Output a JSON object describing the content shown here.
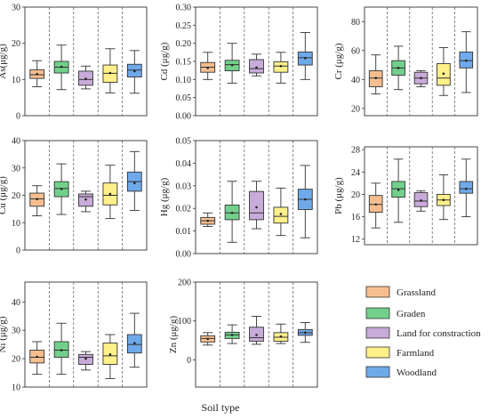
{
  "figure": {
    "xlabel": "Soil type",
    "category_colors": [
      "#f6be8f",
      "#72d08c",
      "#c8abd8",
      "#fff08a",
      "#6ea9ea"
    ]
  },
  "legend": {
    "items": [
      {
        "label": "Grassland",
        "color": "#f6be8f"
      },
      {
        "label": "Graden",
        "color": "#72d08c"
      },
      {
        "label": "Land for constraction",
        "color": "#c8abd8"
      },
      {
        "label": "Farmland",
        "color": "#fff08a"
      },
      {
        "label": "Woodland",
        "color": "#6ea9ea"
      }
    ]
  },
  "chart_data": [
    {
      "type": "box",
      "id": "As",
      "ylabel": "As(μg/g)",
      "ylim": [
        0,
        30
      ],
      "yticks": [
        "0",
        "10",
        "20",
        "30"
      ],
      "tickvals": [
        0,
        10,
        20,
        30
      ],
      "categories": [
        "Grassland",
        "Graden",
        "Land for constraction",
        "Farmland",
        "Woodland"
      ],
      "boxes": [
        {
          "min": 8,
          "q1": 10.3,
          "median": 11.3,
          "q3": 12.7,
          "max": 15.2,
          "mean": 11.5
        },
        {
          "min": 7.2,
          "q1": 11.8,
          "median": 13.4,
          "q3": 15.0,
          "max": 19.5,
          "mean": 13.5
        },
        {
          "min": 7.4,
          "q1": 8.4,
          "median": 10.0,
          "q3": 12.3,
          "max": 13.7,
          "mean": 10.2
        },
        {
          "min": 6.3,
          "q1": 9.2,
          "median": 11.7,
          "q3": 14.0,
          "max": 18.5,
          "mean": 11.8
        },
        {
          "min": 6.2,
          "q1": 10.7,
          "median": 12.6,
          "q3": 14.2,
          "max": 18.0,
          "mean": 12.3
        }
      ]
    },
    {
      "type": "box",
      "id": "Cd",
      "ylabel": "Cd (μg/g)",
      "ylim": [
        0,
        0.3
      ],
      "yticks": [
        "0.00",
        "0.05",
        "0.10",
        "0.15",
        "0.20",
        "0.25",
        "0.30"
      ],
      "tickvals": [
        0,
        0.05,
        0.1,
        0.15,
        0.2,
        0.25,
        0.3
      ],
      "categories": [
        "Grassland",
        "Graden",
        "Land for constraction",
        "Farmland",
        "Woodland"
      ],
      "boxes": [
        {
          "min": 0.1,
          "q1": 0.12,
          "median": 0.134,
          "q3": 0.147,
          "max": 0.175,
          "mean": 0.132
        },
        {
          "min": 0.09,
          "q1": 0.124,
          "median": 0.141,
          "q3": 0.153,
          "max": 0.2,
          "mean": 0.14
        },
        {
          "min": 0.11,
          "q1": 0.118,
          "median": 0.13,
          "q3": 0.155,
          "max": 0.17,
          "mean": 0.133
        },
        {
          "min": 0.09,
          "q1": 0.12,
          "median": 0.137,
          "q3": 0.149,
          "max": 0.175,
          "mean": 0.137
        },
        {
          "min": 0.1,
          "q1": 0.14,
          "median": 0.16,
          "q3": 0.176,
          "max": 0.23,
          "mean": 0.159
        }
      ]
    },
    {
      "type": "box",
      "id": "Cr",
      "ylabel": "Cr (μg/g)",
      "ylim": [
        15,
        90
      ],
      "yticks": [
        "20",
        "40",
        "60",
        "80"
      ],
      "tickvals": [
        20,
        40,
        60,
        80
      ],
      "categories": [
        "Grassland",
        "Graden",
        "Land for constraction",
        "Farmland",
        "Woodland"
      ],
      "boxes": [
        {
          "min": 30,
          "q1": 35,
          "median": 41,
          "q3": 46,
          "max": 57,
          "mean": 41
        },
        {
          "min": 33,
          "q1": 43,
          "median": 48,
          "q3": 53,
          "max": 63,
          "mean": 48
        },
        {
          "min": 35,
          "q1": 37,
          "median": 41,
          "q3": 45,
          "max": 46,
          "mean": 41
        },
        {
          "min": 29,
          "q1": 36,
          "median": 41,
          "q3": 51,
          "max": 62,
          "mean": 44
        },
        {
          "min": 31,
          "q1": 48,
          "median": 53,
          "q3": 59,
          "max": 73,
          "mean": 53
        }
      ]
    },
    {
      "type": "box",
      "id": "Cu",
      "ylabel": "Cu (μg/g)",
      "ylim": [
        0,
        40
      ],
      "yticks": [
        "0",
        "10",
        "20",
        "30",
        "40"
      ],
      "tickvals": [
        0,
        10,
        20,
        30,
        40
      ],
      "categories": [
        "Grassland",
        "Graden",
        "Land for constraction",
        "Farmland",
        "Woodland"
      ],
      "boxes": [
        {
          "min": 12.5,
          "q1": 16.0,
          "median": 18.7,
          "q3": 20.8,
          "max": 23.5,
          "mean": 18.6
        },
        {
          "min": 13.0,
          "q1": 19.5,
          "median": 22.5,
          "q3": 25.0,
          "max": 31.5,
          "mean": 22.3
        },
        {
          "min": 14.0,
          "q1": 16.0,
          "median": 19.5,
          "q3": 20.5,
          "max": 21.5,
          "mean": 18.5
        },
        {
          "min": 11.5,
          "q1": 16.5,
          "median": 20.0,
          "q3": 24.5,
          "max": 31.0,
          "mean": 20.5
        },
        {
          "min": 14.5,
          "q1": 21.5,
          "median": 25.0,
          "q3": 28.5,
          "max": 36.0,
          "mean": 24.5
        }
      ]
    },
    {
      "type": "box",
      "id": "Hg",
      "ylabel": "Hg (μg/g)",
      "ylim": [
        0,
        0.05
      ],
      "yticks": [
        "0.00",
        "0.01",
        "0.02",
        "0.03",
        "0.04",
        "0.05"
      ],
      "tickvals": [
        0,
        0.01,
        0.02,
        0.03,
        0.04,
        0.05
      ],
      "categories": [
        "Grassland",
        "Graden",
        "Land for constraction",
        "Farmland",
        "Woodland"
      ],
      "boxes": [
        {
          "min": 0.012,
          "q1": 0.013,
          "median": 0.0145,
          "q3": 0.016,
          "max": 0.018,
          "mean": 0.0145
        },
        {
          "min": 0.005,
          "q1": 0.015,
          "median": 0.018,
          "q3": 0.0215,
          "max": 0.032,
          "mean": 0.018
        },
        {
          "min": 0.011,
          "q1": 0.015,
          "median": 0.018,
          "q3": 0.0275,
          "max": 0.032,
          "mean": 0.0205
        },
        {
          "min": 0.008,
          "q1": 0.0135,
          "median": 0.0165,
          "q3": 0.0205,
          "max": 0.029,
          "mean": 0.0175
        },
        {
          "min": 0.007,
          "q1": 0.0195,
          "median": 0.024,
          "q3": 0.0285,
          "max": 0.039,
          "mean": 0.024
        }
      ]
    },
    {
      "type": "box",
      "id": "Pb",
      "ylabel": "Pb (μg/g)",
      "ylim": [
        11,
        28.5
      ],
      "yticks": [
        "12",
        "16",
        "20",
        "24",
        "28"
      ],
      "tickvals": [
        12,
        16,
        20,
        24,
        28
      ],
      "categories": [
        "Grassland",
        "Graden",
        "Land for constraction",
        "Farmland",
        "Woodland"
      ],
      "boxes": [
        {
          "min": 14.0,
          "q1": 16.8,
          "median": 18.2,
          "q3": 19.8,
          "max": 22.0,
          "mean": 18.2
        },
        {
          "min": 15.0,
          "q1": 19.5,
          "median": 21.0,
          "q3": 22.3,
          "max": 26.3,
          "mean": 20.8
        },
        {
          "min": 17.0,
          "q1": 17.8,
          "median": 18.8,
          "q3": 20.3,
          "max": 20.6,
          "mean": 18.9
        },
        {
          "min": 15.5,
          "q1": 18.0,
          "median": 19.0,
          "q3": 20.0,
          "max": 23.5,
          "mean": 19.0
        },
        {
          "min": 16.0,
          "q1": 20.2,
          "median": 21.0,
          "q3": 22.3,
          "max": 26.3,
          "mean": 21.0
        }
      ]
    },
    {
      "type": "box",
      "id": "Ni",
      "ylabel": "Ni (μg/g)",
      "ylim": [
        10,
        47
      ],
      "yticks": [
        "10",
        "20",
        "30",
        "40"
      ],
      "tickvals": [
        10,
        20,
        30,
        40
      ],
      "categories": [
        "Grassland",
        "Graden",
        "Land for constraction",
        "Farmland",
        "Woodland"
      ],
      "boxes": [
        {
          "min": 14.5,
          "q1": 18.5,
          "median": 20.5,
          "q3": 23.0,
          "max": 26.0,
          "mean": 20.7
        },
        {
          "min": 14.5,
          "q1": 20.5,
          "median": 23.0,
          "q3": 26.0,
          "max": 32.5,
          "mean": 23.0
        },
        {
          "min": 16.0,
          "q1": 18.0,
          "median": 20.5,
          "q3": 21.5,
          "max": 22.5,
          "mean": 20.0
        },
        {
          "min": 13.0,
          "q1": 18.0,
          "median": 21.0,
          "q3": 25.5,
          "max": 28.5,
          "mean": 21.5
        },
        {
          "min": 17.0,
          "q1": 22.0,
          "median": 25.0,
          "q3": 28.5,
          "max": 36.0,
          "mean": 25.5
        }
      ]
    },
    {
      "type": "box",
      "id": "Zn",
      "ylabel": "Zn (μg/g)",
      "ylim": [
        -70,
        200
      ],
      "yticks": [
        "0",
        "100",
        "200"
      ],
      "tickvals": [
        0,
        100,
        200
      ],
      "categories": [
        "Grassland",
        "Graden",
        "Land for constraction",
        "Farmland",
        "Woodland"
      ],
      "boxes": [
        {
          "min": 38,
          "q1": 46,
          "median": 55,
          "q3": 62,
          "max": 70,
          "mean": 54
        },
        {
          "min": 42,
          "q1": 55,
          "median": 64,
          "q3": 71,
          "max": 90,
          "mean": 64
        },
        {
          "min": 40,
          "q1": 48,
          "median": 57,
          "q3": 84,
          "max": 112,
          "mean": 64
        },
        {
          "min": 42,
          "q1": 48,
          "median": 58,
          "q3": 70,
          "max": 92,
          "mean": 60
        },
        {
          "min": 45,
          "q1": 63,
          "median": 70,
          "q3": 78,
          "max": 96,
          "mean": 70
        }
      ]
    }
  ]
}
